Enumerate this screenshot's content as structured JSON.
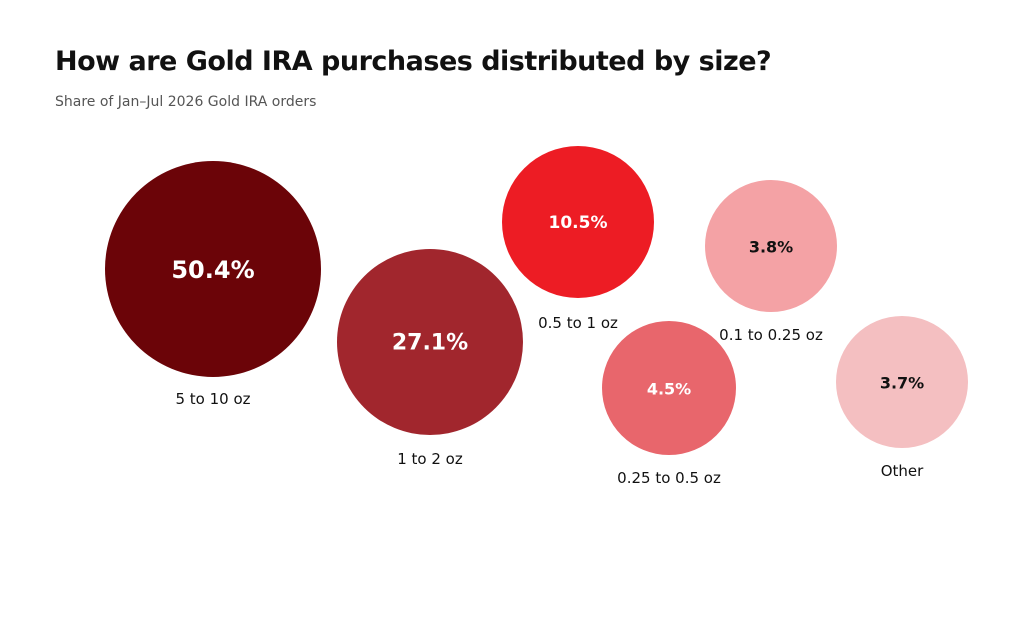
{
  "chart_data": {
    "type": "bubble",
    "title": "How are Gold IRA purchases distributed by size?",
    "subtitle": "Share of Jan–Jul 2026 Gold IRA orders",
    "unit": "%",
    "categories": [
      "5 to 10 oz",
      "1 to 2 oz",
      "0.5 to 1 oz",
      "0.25 to 0.5 oz",
      "0.1 to 0.25 oz",
      "Other"
    ],
    "values": [
      50.4,
      27.1,
      10.5,
      4.5,
      3.8,
      3.7
    ],
    "value_labels": [
      "50.4%",
      "27.1%",
      "10.5%",
      "4.5%",
      "3.8%",
      "3.7%"
    ],
    "colors": [
      "#6b0408",
      "#a1262d",
      "#ed1c24",
      "#e8666c",
      "#f4a2a5",
      "#f4bfc1"
    ]
  }
}
